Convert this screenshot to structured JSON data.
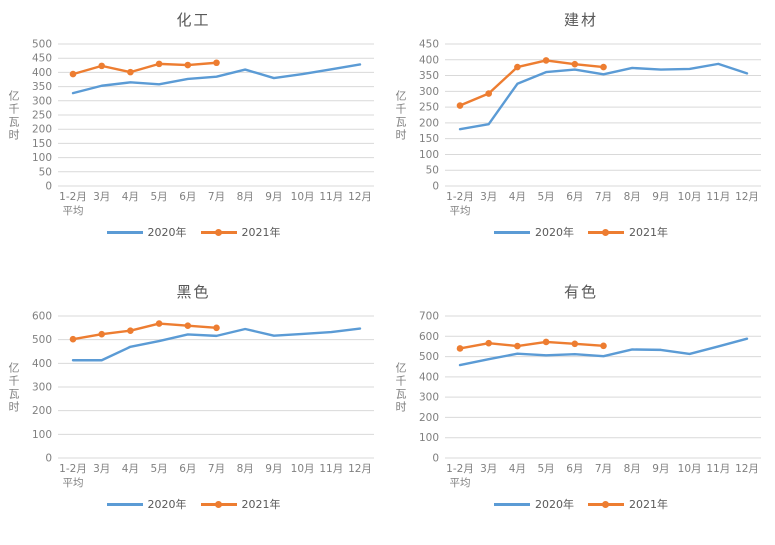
{
  "page": {
    "background": "#ffffff"
  },
  "colors": {
    "series_2020": "#5B9BD5",
    "series_2021": "#ED7D31",
    "gridline": "#D9D9D9",
    "tick_text": "#808080",
    "title_text": "#595959",
    "legend_text": "#595959"
  },
  "chart_data": [
    {
      "type": "line",
      "title": "化工",
      "ylabel": "亿千瓦时",
      "xlabel": "",
      "ylim": [
        0,
        500
      ],
      "ytick_step": 50,
      "yticks": [
        0,
        50,
        100,
        150,
        200,
        250,
        300,
        350,
        400,
        450,
        500
      ],
      "grid": true,
      "legend_position": "bottom",
      "categories": [
        "1-2月\n平均",
        "3月",
        "4月",
        "5月",
        "6月",
        "7月",
        "8月",
        "9月",
        "10月",
        "11月",
        "12月"
      ],
      "series": [
        {
          "name": "2020年",
          "color_key": "series_2020",
          "marker": false,
          "values": [
            327,
            353,
            365,
            358,
            377,
            385,
            410,
            380,
            394,
            411,
            428
          ]
        },
        {
          "name": "2021年",
          "color_key": "series_2021",
          "marker": true,
          "values": [
            394,
            423,
            401,
            430,
            426,
            434
          ]
        }
      ]
    },
    {
      "type": "line",
      "title": "建材",
      "ylabel": "亿千瓦时",
      "xlabel": "",
      "ylim": [
        0,
        450
      ],
      "ytick_step": 50,
      "yticks": [
        0,
        50,
        100,
        150,
        200,
        250,
        300,
        350,
        400,
        450
      ],
      "grid": true,
      "legend_position": "bottom",
      "categories": [
        "1-2月\n平均",
        "3月",
        "4月",
        "5月",
        "6月",
        "7月",
        "8月",
        "9月",
        "10月",
        "11月",
        "12月"
      ],
      "series": [
        {
          "name": "2020年",
          "color_key": "series_2020",
          "marker": false,
          "values": [
            180,
            196,
            324,
            361,
            369,
            354,
            374,
            369,
            371,
            387,
            357
          ]
        },
        {
          "name": "2021年",
          "color_key": "series_2021",
          "marker": true,
          "values": [
            255,
            293,
            377,
            398,
            386,
            377
          ]
        }
      ]
    },
    {
      "type": "line",
      "title": "黑色",
      "ylabel": "亿千瓦时",
      "xlabel": "",
      "ylim": [
        0,
        600
      ],
      "ytick_step": 100,
      "yticks": [
        0,
        100,
        200,
        300,
        400,
        500,
        600
      ],
      "grid": true,
      "legend_position": "bottom",
      "categories": [
        "1-2月\n平均",
        "3月",
        "4月",
        "5月",
        "6月",
        "7月",
        "8月",
        "9月",
        "10月",
        "11月",
        "12月"
      ],
      "series": [
        {
          "name": "2020年",
          "color_key": "series_2020",
          "marker": false,
          "values": [
            413,
            413,
            470,
            494,
            522,
            516,
            545,
            517,
            524,
            532,
            547
          ]
        },
        {
          "name": "2021年",
          "color_key": "series_2021",
          "marker": true,
          "values": [
            502,
            523,
            538,
            568,
            559,
            550
          ]
        }
      ]
    },
    {
      "type": "line",
      "title": "有色",
      "ylabel": "亿千瓦时",
      "xlabel": "",
      "ylim": [
        0,
        700
      ],
      "ytick_step": 100,
      "yticks": [
        0,
        100,
        200,
        300,
        400,
        500,
        600,
        700
      ],
      "grid": true,
      "legend_position": "bottom",
      "categories": [
        "1-2月\n平均",
        "3月",
        "4月",
        "5月",
        "6月",
        "7月",
        "8月",
        "9月",
        "10月",
        "11月",
        "12月"
      ],
      "series": [
        {
          "name": "2020年",
          "color_key": "series_2020",
          "marker": false,
          "values": [
            458,
            487,
            514,
            506,
            512,
            502,
            535,
            533,
            513,
            550,
            588
          ]
        },
        {
          "name": "2021年",
          "color_key": "series_2021",
          "marker": true,
          "values": [
            540,
            566,
            552,
            572,
            563,
            553
          ]
        }
      ]
    }
  ]
}
